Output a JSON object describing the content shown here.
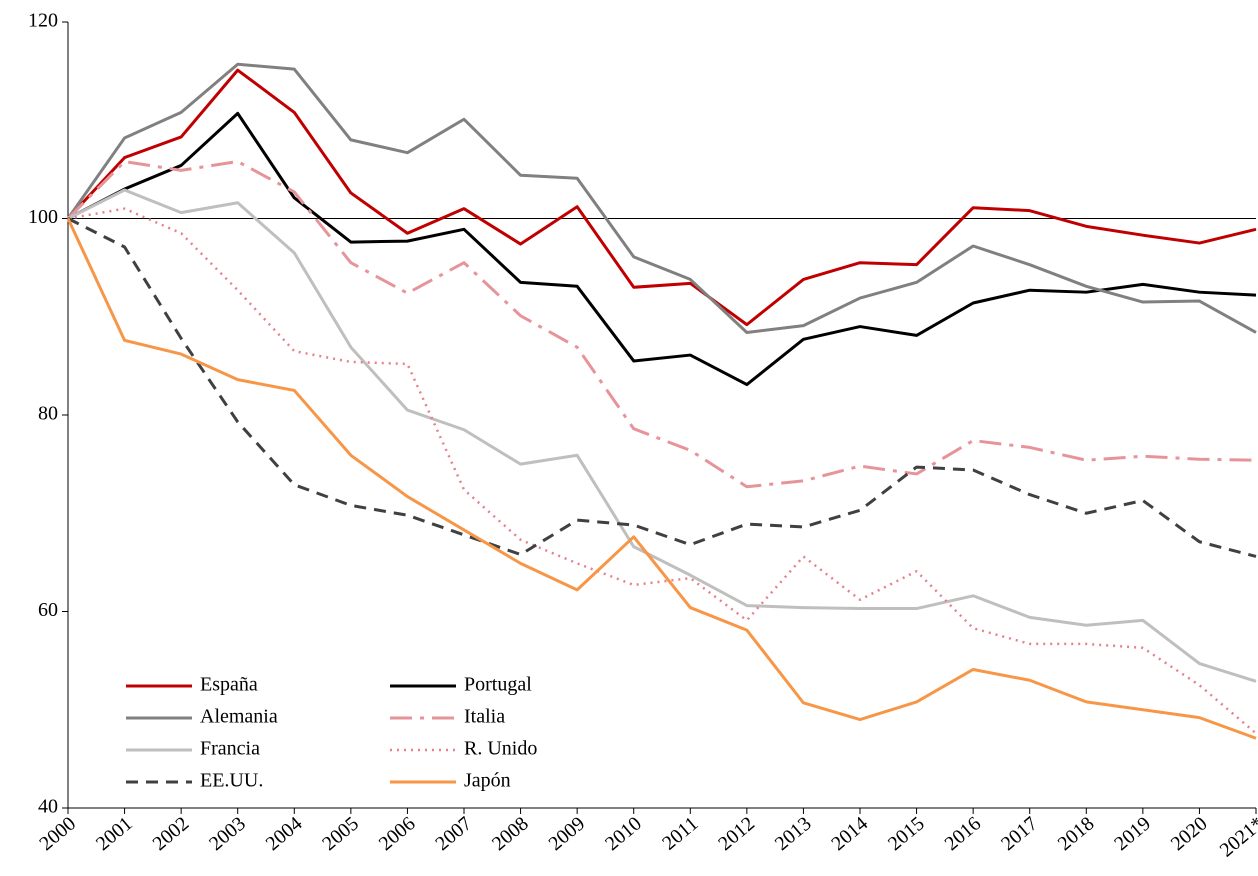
{
  "chart_data": {
    "type": "line",
    "categories": [
      "2000",
      "2001",
      "2002",
      "2003",
      "2004",
      "2005",
      "2006",
      "2007",
      "2008",
      "2009",
      "2010",
      "2011",
      "2012",
      "2013",
      "2014",
      "2015",
      "2016",
      "2017",
      "2018",
      "2019",
      "2020",
      "2021*"
    ],
    "ylim": [
      40,
      120
    ],
    "yticks": [
      40,
      60,
      80,
      100,
      120
    ],
    "reference_line": 100,
    "grid": false,
    "legend": "lower left",
    "series": [
      {
        "name": "España",
        "color": "#c00000",
        "dash": "solid",
        "values": [
          100,
          106.2,
          108.3,
          115.1,
          110.8,
          102.6,
          98.5,
          101.0,
          97.4,
          101.2,
          93.0,
          93.4,
          89.2,
          93.8,
          95.5,
          95.3,
          101.1,
          100.8,
          99.2,
          98.3,
          97.5,
          98.9
        ]
      },
      {
        "name": "Portugal",
        "color": "#000000",
        "dash": "solid",
        "values": [
          100,
          103.0,
          105.4,
          110.7,
          102.1,
          97.6,
          97.7,
          98.9,
          93.5,
          93.1,
          85.5,
          86.1,
          83.1,
          87.7,
          89.0,
          88.1,
          91.4,
          92.7,
          92.5,
          93.3,
          92.5,
          92.2
        ]
      },
      {
        "name": "Alemania",
        "color": "#808080",
        "dash": "solid",
        "values": [
          100,
          108.2,
          110.8,
          115.7,
          115.2,
          108.0,
          106.7,
          110.1,
          104.4,
          104.1,
          96.1,
          93.8,
          88.4,
          89.1,
          91.9,
          93.5,
          97.2,
          95.3,
          93.1,
          91.5,
          91.6,
          88.4
        ]
      },
      {
        "name": "Italia",
        "color": "#e6949a",
        "dash": "dashdot",
        "values": [
          100,
          105.8,
          104.9,
          105.8,
          102.7,
          95.5,
          92.4,
          95.5,
          90.1,
          86.9,
          78.6,
          76.4,
          72.7,
          73.3,
          74.8,
          74.0,
          77.4,
          76.7,
          75.4,
          75.8,
          75.5,
          75.4
        ]
      },
      {
        "name": "Francia",
        "color": "#bfbfbf",
        "dash": "solid",
        "values": [
          100,
          102.9,
          100.6,
          101.6,
          96.5,
          86.9,
          80.5,
          78.5,
          75.0,
          75.9,
          66.6,
          63.7,
          60.6,
          60.4,
          60.3,
          60.3,
          61.6,
          59.4,
          58.6,
          59.1,
          54.7,
          52.9
        ]
      },
      {
        "name": "R. Unido",
        "color": "#e6808a",
        "dash": "dotted",
        "values": [
          100,
          101.0,
          98.5,
          92.7,
          86.5,
          85.4,
          85.2,
          72.4,
          67.3,
          64.9,
          62.7,
          63.4,
          59.1,
          65.6,
          61.2,
          64.1,
          58.3,
          56.7,
          56.7,
          56.3,
          52.5,
          47.6
        ]
      },
      {
        "name": "EE.UU.",
        "color": "#404040",
        "dash": "dashed",
        "values": [
          100,
          97.1,
          87.8,
          79.3,
          72.9,
          70.8,
          69.8,
          67.8,
          65.8,
          69.3,
          68.8,
          66.8,
          68.9,
          68.6,
          70.3,
          74.7,
          74.4,
          71.9,
          70.0,
          71.3,
          67.1,
          65.6
        ]
      },
      {
        "name": "Japón",
        "color": "#f79646",
        "dash": "solid",
        "values": [
          100,
          87.6,
          86.2,
          83.6,
          82.5,
          75.9,
          71.7,
          68.3,
          64.9,
          62.2,
          67.6,
          60.4,
          58.1,
          50.7,
          49.0,
          50.8,
          54.1,
          53.0,
          50.8,
          50.0,
          49.2,
          47.1
        ]
      }
    ]
  }
}
